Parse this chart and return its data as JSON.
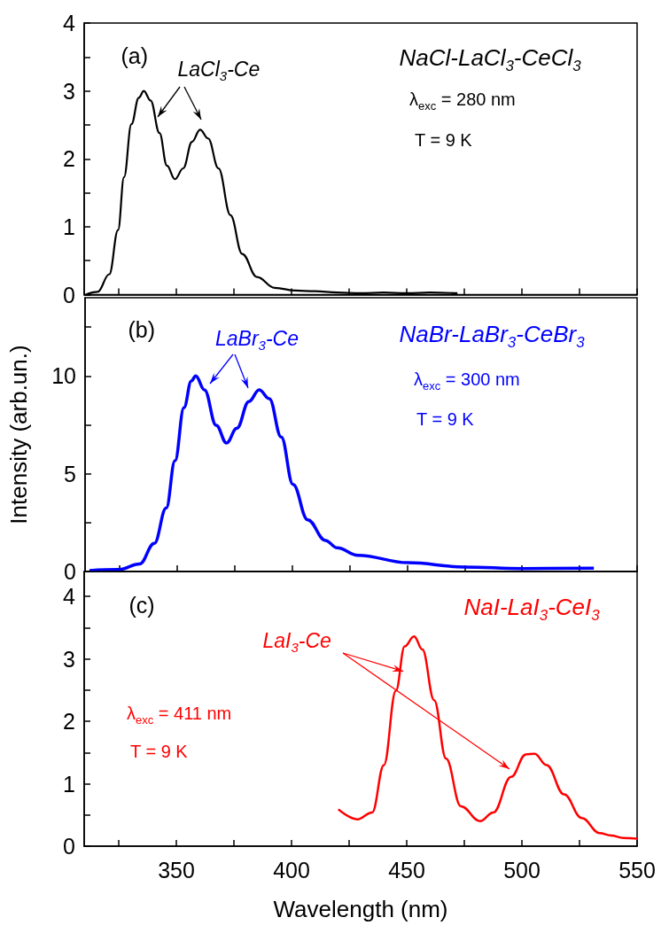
{
  "chart_data": [
    {
      "type": "line",
      "marker": "none",
      "tick_labels": "y",
      "xlim": [
        310,
        550
      ],
      "xticks": [
        {
          "value": 325,
          "label": null
        },
        350,
        {
          "value": 375,
          "label": null
        },
        400,
        {
          "value": 425,
          "label": null
        },
        450,
        {
          "value": 475,
          "label": null
        },
        500,
        {
          "value": 525,
          "label": null
        },
        550
      ],
      "ylim": [
        0,
        4
      ],
      "yticks": [
        0,
        {
          "value": 0.5,
          "label": null
        },
        1,
        {
          "value": 1.5,
          "label": null
        },
        2,
        {
          "value": 2.5,
          "label": null
        },
        3,
        {
          "value": 3.5,
          "label": null
        },
        4
      ],
      "series": [
        {
          "color": "#000000",
          "x": [
            310.7,
            315.8,
            320.9,
            324.7,
            327.3,
            330.5,
            333.7,
            335.9,
            338.8,
            342.7,
            345.9,
            349.4,
            353,
            356.8,
            360.3,
            363.8,
            368.3,
            373.5,
            378.6,
            385,
            392.7,
            401.7,
            410,
            420,
            430,
            440,
            450,
            460,
            472
          ],
          "values": [
            0,
            0.04,
            0.3,
            0.95,
            1.73,
            2.51,
            2.9,
            3.0,
            2.86,
            2.38,
            1.9,
            1.7,
            1.86,
            2.25,
            2.43,
            2.3,
            1.86,
            1.17,
            0.6,
            0.26,
            0.1,
            0.06,
            0.05,
            0.03,
            0.02,
            0.03,
            0.02,
            0.03,
            0.02
          ]
        }
      ],
      "annotations": [
        "(a)",
        "LaCl$_{3}$-Ce",
        "NaCl-LaCl$_{3}$-CeCl$_{3}$",
        "λ$_{exc}$ = 280 nm",
        "T = 9 K"
      ]
    },
    {
      "type": "line",
      "marker": "none",
      "tick_labels": "y",
      "ylabel": "Intensity (arb.un.)",
      "xlim": [
        310,
        550
      ],
      "xticks": [
        {
          "value": 325,
          "label": null
        },
        350,
        {
          "value": 375,
          "label": null
        },
        400,
        {
          "value": 425,
          "label": null
        },
        450,
        {
          "value": 475,
          "label": null
        },
        500,
        {
          "value": 525,
          "label": null
        },
        550
      ],
      "ylim": [
        0,
        14
      ],
      "yticks": [
        0,
        {
          "value": 2.5,
          "label": null
        },
        5,
        {
          "value": 7.5,
          "label": null
        },
        10,
        {
          "value": 12.5,
          "label": null
        }
      ],
      "series": [
        {
          "color": "#0000ff",
          "x": [
            311.9,
            324.7,
            333.7,
            340.1,
            345.3,
            349.1,
            353,
            356.2,
            358.1,
            361.9,
            367,
            371.5,
            376,
            381.2,
            385.7,
            390.1,
            395.3,
            400.4,
            406.8,
            414.5,
            419.6,
            428.6,
            450.4,
            474.7,
            500.4,
            531.2
          ],
          "values": [
            0.05,
            0.1,
            0.38,
            1.44,
            3.25,
            5.66,
            8.38,
            9.74,
            10.0,
            9.29,
            7.48,
            6.57,
            7.33,
            8.69,
            9.29,
            8.84,
            6.87,
            4.45,
            2.64,
            1.59,
            1.21,
            0.83,
            0.45,
            0.23,
            0.15,
            0.17
          ]
        }
      ],
      "annotations": [
        "(b)",
        "LaBr$_{3}$-Ce",
        "NaBr-LaBr$_{3}$-CeBr$_{3}$",
        "λ$_{exc}$ = 300 nm",
        "T = 9 K"
      ]
    },
    {
      "type": "line",
      "marker": "none",
      "xlabel": "Wavelength (nm)",
      "xlim": [
        310,
        550
      ],
      "xticks": [
        {
          "value": 325,
          "label": null
        },
        350,
        {
          "value": 375,
          "label": null
        },
        400,
        {
          "value": 425,
          "label": null
        },
        450,
        {
          "value": 475,
          "label": null
        },
        500,
        {
          "value": 525,
          "label": null
        },
        550
      ],
      "ylim": [
        0,
        4.4
      ],
      "yticks": [
        0,
        {
          "value": 0.5,
          "label": null
        },
        1,
        {
          "value": 1.5,
          "label": null
        },
        2,
        {
          "value": 2.5,
          "label": null
        },
        3,
        {
          "value": 3.5,
          "label": null
        },
        4
      ],
      "series": [
        {
          "color": "#ff0000",
          "x": [
            420.3,
            428.6,
            435,
            440.1,
            445.3,
            449.1,
            453.2,
            456.8,
            461.9,
            467.1,
            473.5,
            481.8,
            487.6,
            495.3,
            501.7,
            505.5,
            510.7,
            518.3,
            526,
            533.7,
            538.8,
            544,
            550
          ],
          "values": [
            0.59,
            0.43,
            0.54,
            1.3,
            2.49,
            3.2,
            3.36,
            3.15,
            2.34,
            1.4,
            0.64,
            0.4,
            0.54,
            1.11,
            1.47,
            1.48,
            1.3,
            0.83,
            0.45,
            0.21,
            0.17,
            0.13,
            0.12
          ]
        }
      ],
      "annotations": [
        "(c)",
        {
          "text": "LaI$_{3}$-Ce",
          "x": 448.5,
          "y": 2.8
        },
        "NaI-LaI$_{3}$-CeI$_{3}$",
        "λ$_{exc}$ = 411 nm",
        "T = 9 K"
      ]
    }
  ]
}
